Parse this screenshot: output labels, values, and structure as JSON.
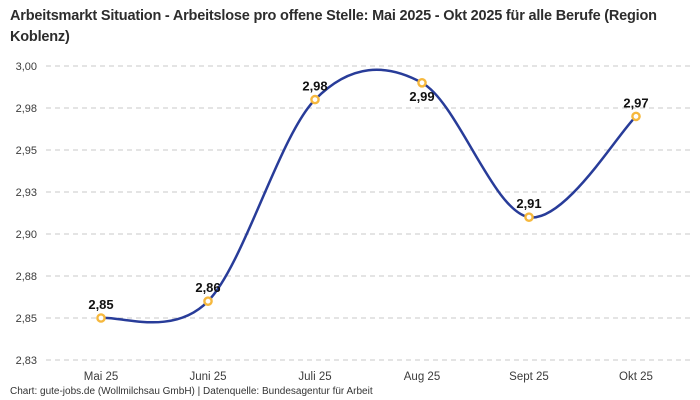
{
  "header": {
    "title": "Arbeitsmarkt Situation - Arbeitslose pro offene Stelle: Mai 2025 - Okt 2025 für alle Berufe (Region Koblenz)"
  },
  "footer": {
    "credit": "Chart: gute-jobs.de (Wollmilchsau GmbH) | Datenquelle: Bundesagentur für Arbeit"
  },
  "chart_data": {
    "type": "line",
    "title": "Arbeitsmarkt Situation - Arbeitslose pro offene Stelle: Mai 2025 - Okt 2025 für alle Berufe (Region Koblenz)",
    "categories": [
      "Mai 25",
      "Juni 25",
      "Juli 25",
      "Aug 25",
      "Sept 25",
      "Okt 25"
    ],
    "values": [
      2.85,
      2.86,
      2.98,
      2.99,
      2.91,
      2.97
    ],
    "point_labels": [
      "2,85",
      "2,86",
      "2,98",
      "2,99",
      "2,91",
      "2,97"
    ],
    "point_label_positions": [
      "above",
      "above",
      "above",
      "below",
      "above",
      "above"
    ],
    "y_ticks": [
      {
        "value": 3.0,
        "label": "3,00"
      },
      {
        "value": 2.975,
        "label": "2,98"
      },
      {
        "value": 2.95,
        "label": "2,95"
      },
      {
        "value": 2.925,
        "label": "2,93"
      },
      {
        "value": 2.9,
        "label": "2,90"
      },
      {
        "value": 2.875,
        "label": "2,88"
      },
      {
        "value": 2.85,
        "label": "2,85"
      },
      {
        "value": 2.825,
        "label": "2,83"
      }
    ],
    "ylim": [
      2.825,
      3.0
    ],
    "xlabel": "",
    "ylabel": "",
    "grid": "horizontal-dashed",
    "legend": "none",
    "line_style": "smooth-spline",
    "colors": {
      "line": "#283c99",
      "marker_stroke": "#f6b83d",
      "marker_fill": "#ffffff",
      "grid": "#c9c9c9",
      "axis_text": "#3c3c3c",
      "point_label_text": "#111111"
    }
  }
}
